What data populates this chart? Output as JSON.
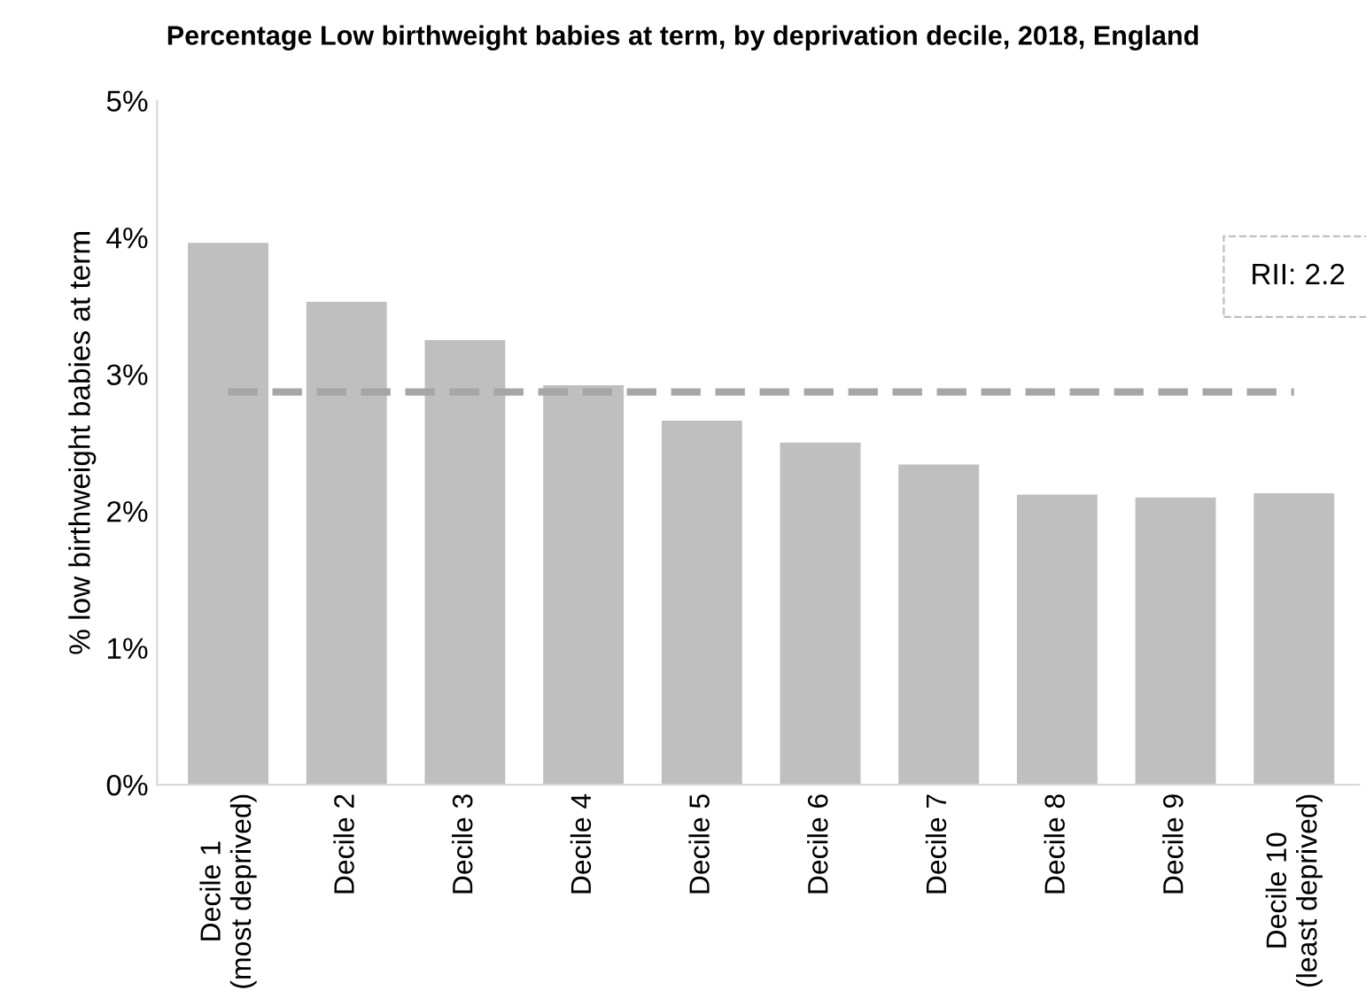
{
  "chart_data": {
    "type": "bar",
    "title": "Percentage Low birthweight babies at term, by deprivation decile, 2018, England",
    "ylabel": "% low birthweight babies at term",
    "categories": [
      "Decile 1\n(most deprived)",
      "Decile 2",
      "Decile 3",
      "Decile 4",
      "Decile 5",
      "Decile 6",
      "Decile 7",
      "Decile 8",
      "Decile 9",
      "Decile 10\n(least deprived)"
    ],
    "values": [
      3.96,
      3.53,
      3.25,
      2.92,
      2.66,
      2.5,
      2.34,
      2.12,
      2.1,
      2.13
    ],
    "color": "#bfbfbf",
    "ylim": [
      0,
      5
    ],
    "yticks": [
      {
        "value": 0,
        "label": "0%"
      },
      {
        "value": 1,
        "label": "1%"
      },
      {
        "value": 2,
        "label": "2%"
      },
      {
        "value": 3,
        "label": "3%"
      },
      {
        "value": 4,
        "label": "4%"
      },
      {
        "value": 5,
        "label": "5%"
      }
    ],
    "ref_lines": [
      {
        "axis": "y",
        "value": 2.87,
        "color": "#a6a6a6",
        "line_style": "dashed"
      }
    ],
    "annotations": [
      "RII: 2.2"
    ],
    "grid": false,
    "legend": false
  }
}
